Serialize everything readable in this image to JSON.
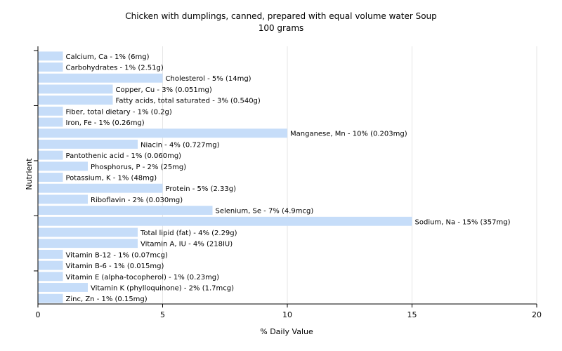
{
  "chart_data": {
    "type": "bar",
    "orientation": "horizontal",
    "title": "Chicken with dumplings, canned, prepared with equal volume water Soup",
    "subtitle": "100 grams",
    "xlabel": "% Daily Value",
    "ylabel": "Nutrient",
    "xlim": [
      0,
      20
    ],
    "xticks": [
      "0",
      "5",
      "10",
      "15",
      "20"
    ],
    "grid": true,
    "bar_color": "#c6ddf9",
    "categories": [
      "Calcium, Ca",
      "Carbohydrates",
      "Cholesterol",
      "Copper, Cu",
      "Fatty acids, total saturated",
      "Fiber, total dietary",
      "Iron, Fe",
      "Manganese, Mn",
      "Niacin",
      "Pantothenic acid",
      "Phosphorus, P",
      "Potassium, K",
      "Protein",
      "Riboflavin",
      "Selenium, Se",
      "Sodium, Na",
      "Total lipid (fat)",
      "Vitamin A, IU",
      "Vitamin B-12",
      "Vitamin B-6",
      "Vitamin E (alpha-tocopherol)",
      "Vitamin K (phylloquinone)",
      "Zinc, Zn"
    ],
    "values": [
      1,
      1,
      5,
      3,
      3,
      1,
      1,
      10,
      4,
      1,
      2,
      1,
      5,
      2,
      7,
      15,
      4,
      4,
      1,
      1,
      1,
      2,
      1
    ],
    "labels": [
      "Calcium, Ca - 1% (6mg)",
      "Carbohydrates - 1% (2.51g)",
      "Cholesterol - 5% (14mg)",
      "Copper, Cu - 3% (0.051mg)",
      "Fatty acids, total saturated - 3% (0.540g)",
      "Fiber, total dietary - 1% (0.2g)",
      "Iron, Fe - 1% (0.26mg)",
      "Manganese, Mn - 10% (0.203mg)",
      "Niacin - 4% (0.727mg)",
      "Pantothenic acid - 1% (0.060mg)",
      "Phosphorus, P - 2% (25mg)",
      "Potassium, K - 1% (48mg)",
      "Protein - 5% (2.33g)",
      "Riboflavin - 2% (0.030mg)",
      "Selenium, Se - 7% (4.9mcg)",
      "Sodium, Na - 15% (357mg)",
      "Total lipid (fat) - 4% (2.29g)",
      "Vitamin A, IU - 4% (218IU)",
      "Vitamin B-12 - 1% (0.07mcg)",
      "Vitamin B-6 - 1% (0.015mg)",
      "Vitamin E (alpha-tocopherol) - 1% (0.23mg)",
      "Vitamin K (phylloquinone) - 2% (1.7mcg)",
      "Zinc, Zn - 1% (0.15mg)"
    ]
  }
}
